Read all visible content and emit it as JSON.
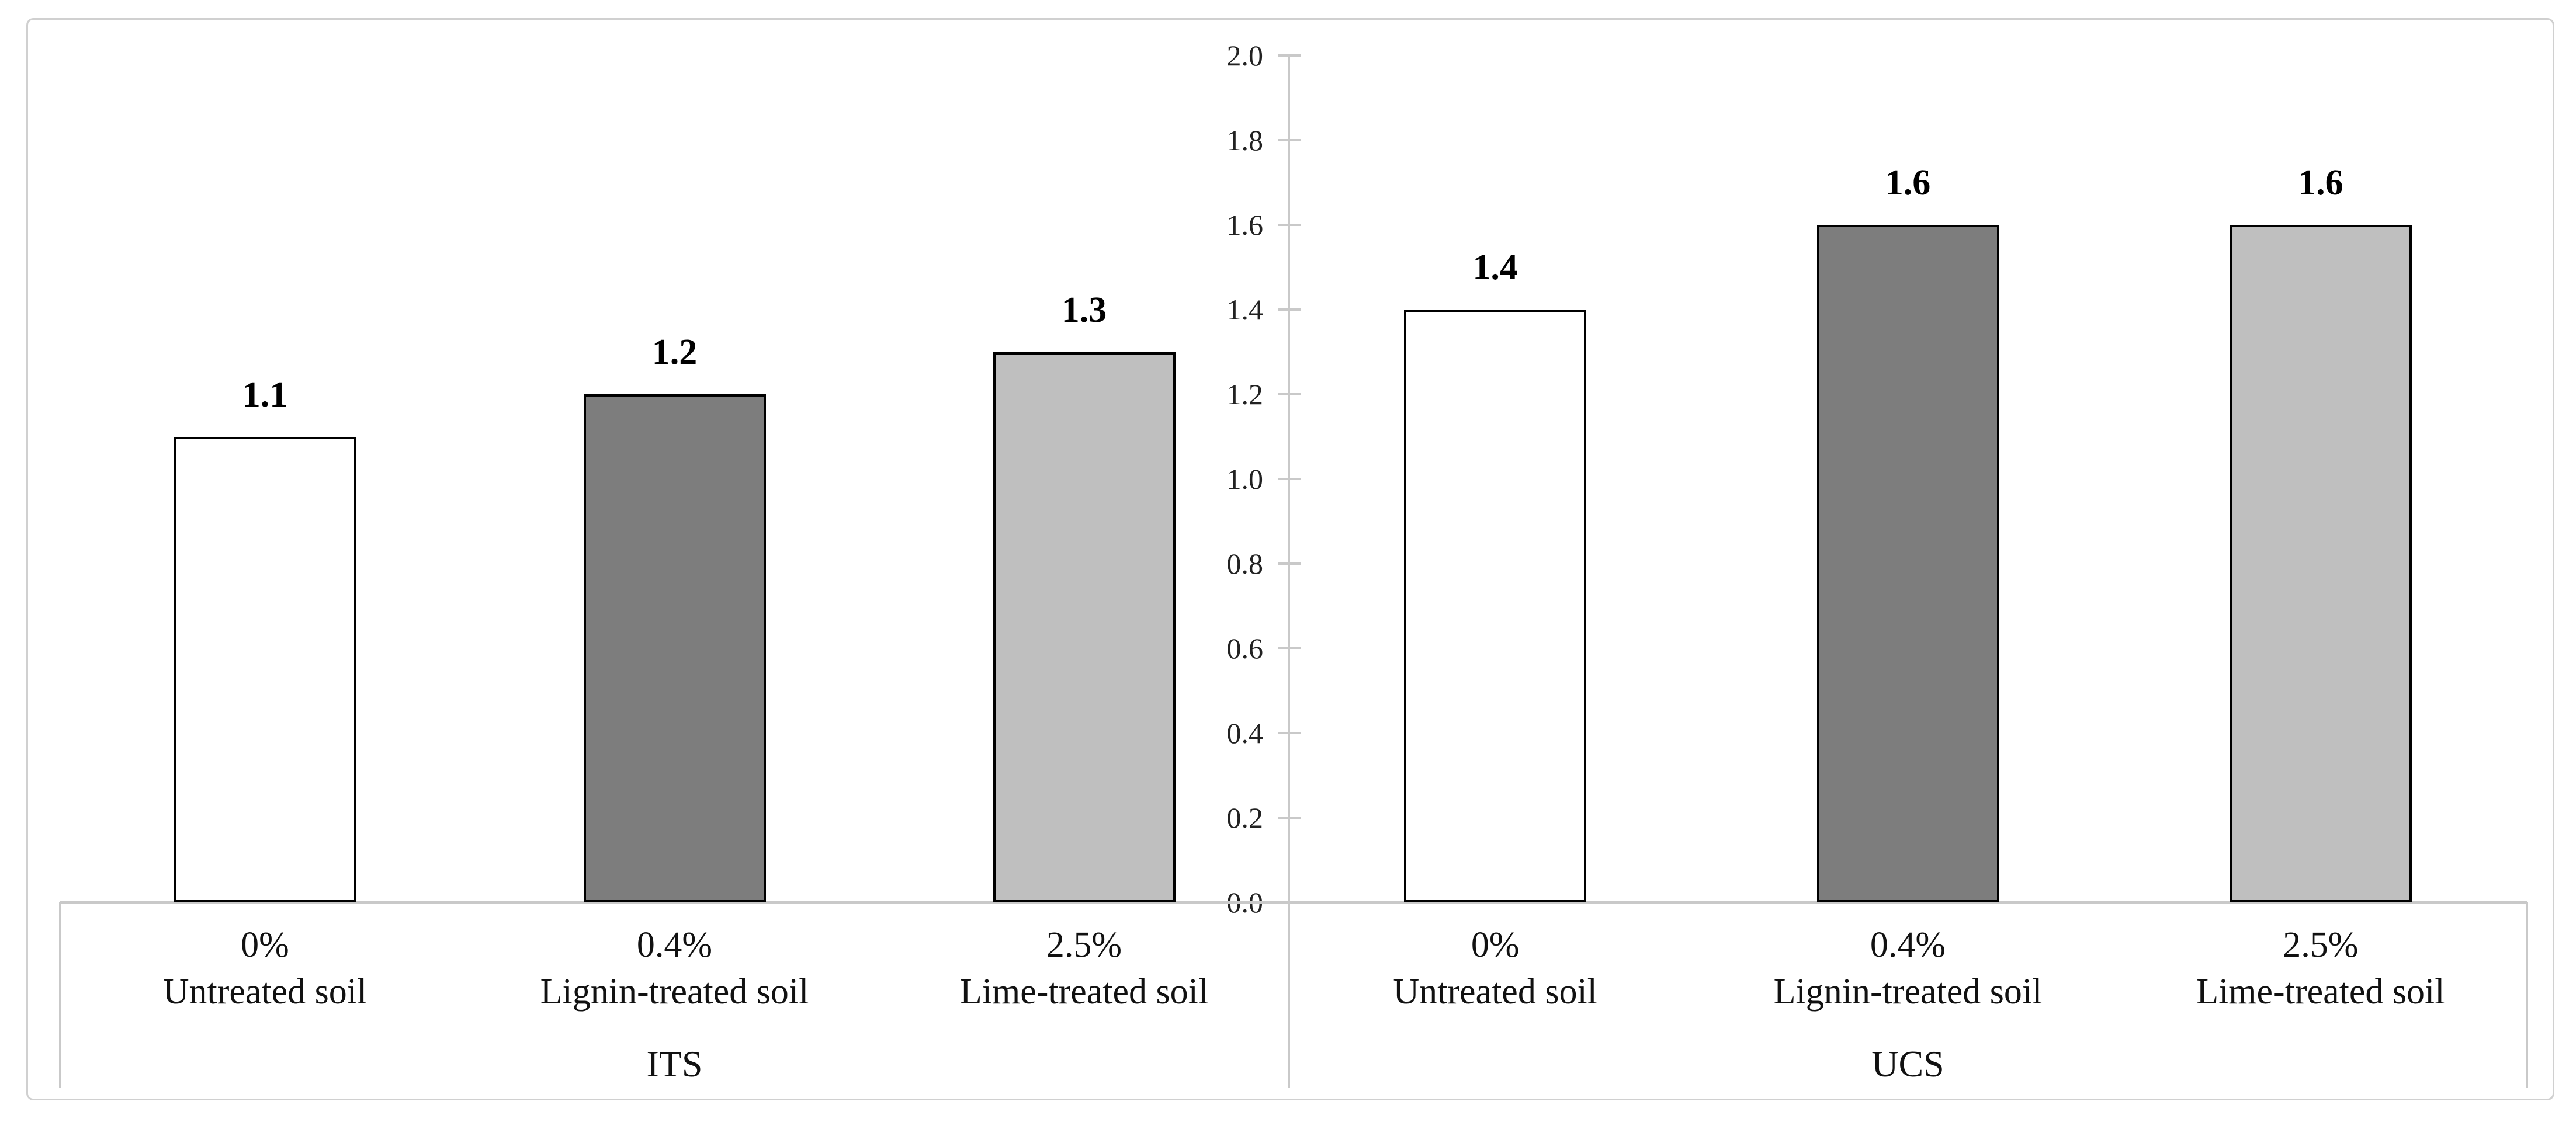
{
  "chart_data": {
    "type": "bar",
    "title": "",
    "xlabel": "",
    "ylabel": "",
    "ylim": [
      0.0,
      2.0
    ],
    "ytick_interval": 0.2,
    "ytick_labels": [
      "0.0",
      "0.2",
      "0.4",
      "0.6",
      "0.8",
      "1.0",
      "1.2",
      "1.4",
      "1.6",
      "1.8",
      "2.0"
    ],
    "grid": false,
    "legend_position": "none",
    "axis_position": "center-between-groups",
    "groups": [
      {
        "group_label": "ITS",
        "categories": [
          {
            "line1": "0%",
            "line2": "Untreated soil"
          },
          {
            "line1": "0.4%",
            "line2": "Lignin-treated soil"
          },
          {
            "line1": "2.5%",
            "line2": "Lime-treated soil"
          }
        ],
        "values": [
          1.1,
          1.2,
          1.3
        ],
        "value_labels": [
          "1.1",
          "1.2",
          "1.3"
        ]
      },
      {
        "group_label": "UCS",
        "categories": [
          {
            "line1": "0%",
            "line2": "Untreated soil"
          },
          {
            "line1": "0.4%",
            "line2": "Lignin-treated soil"
          },
          {
            "line1": "2.5%",
            "line2": "Lime-treated soil"
          }
        ],
        "values": [
          1.4,
          1.6,
          1.6
        ],
        "value_labels": [
          "1.4",
          "1.6",
          "1.6"
        ]
      }
    ],
    "bar_style_names": [
      "untreated-soil",
      "lignin-treated-soil",
      "lime-treated-soil"
    ],
    "bar_fill_colors": [
      "#ffffff",
      "#7d7d7d",
      "#bfbfbf"
    ],
    "bar_border_color": "#000000",
    "colors": {
      "axis_line": "#c9c9c9",
      "outer_border": "#d0d0d0",
      "tick_text": "#222222",
      "label_text": "#111111",
      "value_text": "#000000",
      "background": "#ffffff"
    }
  }
}
